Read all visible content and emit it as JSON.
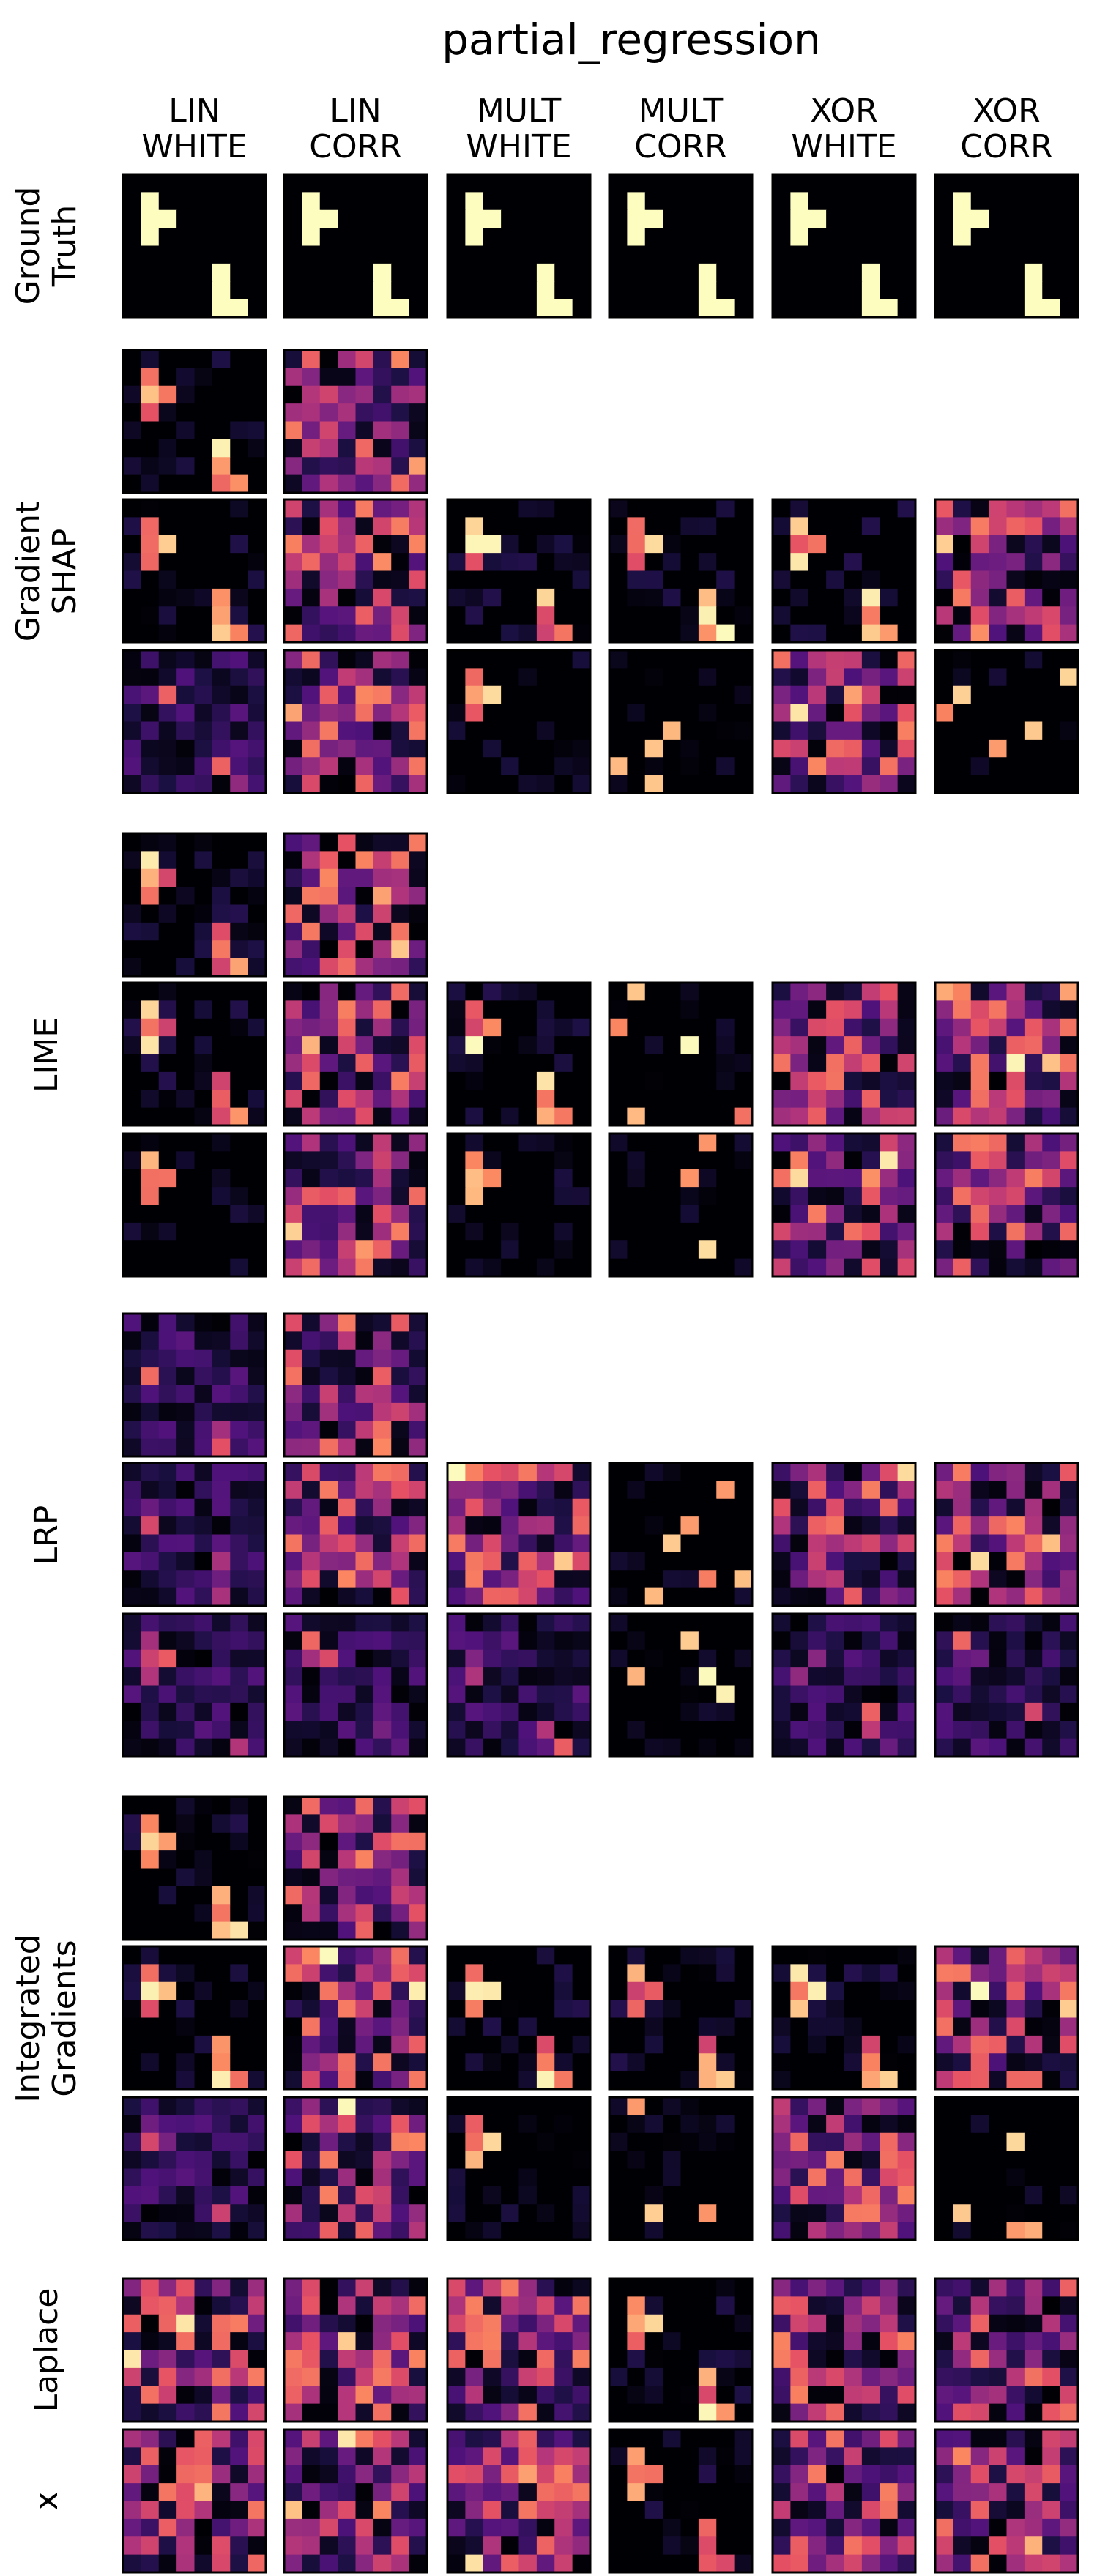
{
  "chart_data": {
    "type": "heatmap",
    "title": "partial_regression",
    "colormap": "magma",
    "columns": [
      "LIN WHITE",
      "LIN CORR",
      "MULT WHITE",
      "MULT CORR",
      "XOR WHITE",
      "XOR CORR"
    ],
    "column_label_lines": [
      [
        "LIN",
        "WHITE"
      ],
      [
        "LIN",
        "CORR"
      ],
      [
        "MULT",
        "WHITE"
      ],
      [
        "MULT",
        "CORR"
      ],
      [
        "XOR",
        "WHITE"
      ],
      [
        "XOR",
        "CORR"
      ]
    ],
    "grid_size": 8,
    "groups": [
      {
        "label_lines": [
          "Ground",
          "Truth"
        ],
        "rows": [
          [
            "gt",
            "gt",
            "gt",
            "gt",
            "gt",
            "gt"
          ]
        ]
      },
      {
        "label_lines": [
          "Gradient",
          "SHAP"
        ],
        "rows": [
          [
            "focused",
            "noisy",
            null,
            null,
            null,
            null
          ],
          [
            "focused",
            "noisy",
            "focused",
            "focused",
            "focused",
            "noisy"
          ],
          [
            "mixed",
            "noisy",
            "partial",
            "sparse",
            "noisy",
            "sparse"
          ]
        ]
      },
      {
        "label_lines": [
          "LIME"
        ],
        "rows": [
          [
            "focused",
            "noisy",
            null,
            null,
            null,
            null
          ],
          [
            "focused",
            "noisy",
            "focused",
            "sparse",
            "noisy",
            "noisy"
          ],
          [
            "partial",
            "noisy",
            "partial",
            "sparse",
            "noisy",
            "noisy"
          ]
        ]
      },
      {
        "label_lines": [
          "LRP"
        ],
        "rows": [
          [
            "mixed",
            "noisy",
            null,
            null,
            null,
            null
          ],
          [
            "mixed",
            "noisy",
            "noisy",
            "sparse",
            "noisy",
            "noisy"
          ],
          [
            "mixed",
            "mixed",
            "mixed",
            "sparse",
            "mixed",
            "mixed"
          ]
        ]
      },
      {
        "label_lines": [
          "Integrated",
          "Gradients"
        ],
        "rows": [
          [
            "focused",
            "noisy",
            null,
            null,
            null,
            null
          ],
          [
            "focused",
            "noisy",
            "focused",
            "focused",
            "focused",
            "noisy"
          ],
          [
            "mixed",
            "noisy",
            "partial",
            "sparse",
            "noisy",
            "sparse"
          ]
        ]
      },
      {
        "label_lines": [
          "Laplace"
        ],
        "rows": [
          [
            "noisy",
            "noisy",
            "noisy",
            "focused",
            "noisy",
            "noisy"
          ]
        ]
      },
      {
        "label_lines": [
          "x"
        ],
        "rows": [
          [
            "noisy",
            "noisy",
            "noisy",
            "focused",
            "noisy",
            "noisy"
          ]
        ]
      }
    ]
  }
}
